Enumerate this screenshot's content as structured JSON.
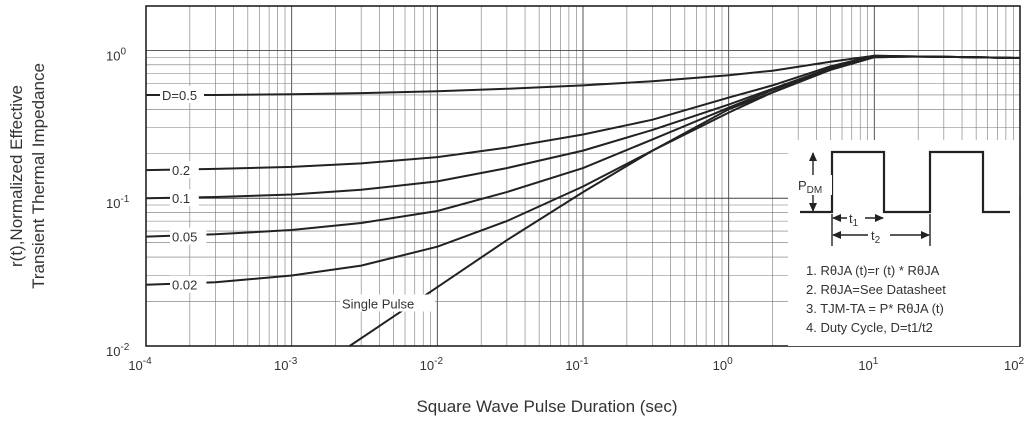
{
  "chart_data": {
    "type": "line",
    "xscale": "log",
    "yscale": "log",
    "xlim": [
      0.0001,
      100
    ],
    "ylim": [
      0.01,
      2
    ],
    "grid": true,
    "xlabel": "Square Wave Pulse Duration (sec)",
    "ylabel_lines": [
      "r(t),Normalized Effective",
      "Transient Thermal Impedance"
    ],
    "x_ticks": [
      {
        "value": 0.0001,
        "base": "10",
        "exp": "-4"
      },
      {
        "value": 0.001,
        "base": "10",
        "exp": "-3"
      },
      {
        "value": 0.01,
        "base": "10",
        "exp": "-2"
      },
      {
        "value": 0.1,
        "base": "10",
        "exp": "-1"
      },
      {
        "value": 1,
        "base": "10",
        "exp": "0"
      },
      {
        "value": 10,
        "base": "10",
        "exp": "1"
      },
      {
        "value": 100,
        "base": "10",
        "exp": "2"
      }
    ],
    "y_ticks": [
      {
        "value": 0.01,
        "base": "10",
        "exp": "-2"
      },
      {
        "value": 0.1,
        "base": "10",
        "exp": "-1"
      },
      {
        "value": 1,
        "base": "10",
        "exp": "0"
      }
    ],
    "series": [
      {
        "name": "D=0.5",
        "x": [
          0.0001,
          0.0003,
          0.001,
          0.003,
          0.01,
          0.03,
          0.1,
          0.3,
          1,
          2,
          5,
          10,
          20,
          50,
          100
        ],
        "y": [
          0.5,
          0.5,
          0.505,
          0.515,
          0.53,
          0.55,
          0.58,
          0.62,
          0.68,
          0.73,
          0.84,
          0.92,
          0.91,
          0.9,
          0.89
        ]
      },
      {
        "name": "0.2",
        "x": [
          0.0001,
          0.0003,
          0.001,
          0.003,
          0.01,
          0.03,
          0.1,
          0.3,
          1,
          2,
          5,
          10,
          20,
          50,
          100
        ],
        "y": [
          0.155,
          0.158,
          0.163,
          0.172,
          0.19,
          0.22,
          0.27,
          0.34,
          0.48,
          0.58,
          0.78,
          0.92,
          0.91,
          0.9,
          0.89
        ]
      },
      {
        "name": "0.1",
        "x": [
          0.0001,
          0.0003,
          0.001,
          0.003,
          0.01,
          0.03,
          0.1,
          0.3,
          1,
          2,
          5,
          10,
          20,
          50,
          100
        ],
        "y": [
          0.1,
          0.102,
          0.106,
          0.114,
          0.13,
          0.16,
          0.21,
          0.29,
          0.43,
          0.55,
          0.76,
          0.91,
          0.91,
          0.9,
          0.89
        ]
      },
      {
        "name": "0.05",
        "x": [
          0.0001,
          0.0003,
          0.001,
          0.003,
          0.01,
          0.03,
          0.1,
          0.3,
          1,
          2,
          5,
          10,
          20,
          50,
          100
        ],
        "y": [
          0.055,
          0.057,
          0.061,
          0.068,
          0.082,
          0.11,
          0.16,
          0.25,
          0.41,
          0.54,
          0.75,
          0.91,
          0.91,
          0.9,
          0.89
        ]
      },
      {
        "name": "0.02",
        "x": [
          0.0001,
          0.0003,
          0.001,
          0.003,
          0.01,
          0.03,
          0.1,
          0.3,
          1,
          2,
          5,
          10,
          20,
          50,
          100
        ],
        "y": [
          0.026,
          0.027,
          0.03,
          0.035,
          0.047,
          0.07,
          0.12,
          0.21,
          0.38,
          0.52,
          0.74,
          0.9,
          0.91,
          0.9,
          0.89
        ]
      },
      {
        "name": "Single Pulse",
        "x": [
          0.0025,
          0.01,
          0.03,
          0.1,
          0.3,
          1,
          2,
          5,
          10,
          20,
          50,
          100
        ],
        "y": [
          0.01,
          0.025,
          0.052,
          0.11,
          0.21,
          0.4,
          0.52,
          0.74,
          0.9,
          0.91,
          0.9,
          0.89
        ]
      }
    ],
    "annotations": [
      "D=0.5",
      "0.2",
      "0.1",
      "0.05",
      "0.02",
      "Single Pulse"
    ],
    "inset": {
      "pdm_label": "P",
      "pdm_sub": "DM",
      "t1_label": "t",
      "t1_sub": "1",
      "t2_label": "t",
      "t2_sub": "2"
    },
    "notes": [
      "1. RθJA (t)=r (t) * RθJA",
      "2. RθJA=See Datasheet",
      "3. TJM-TA = P* RθJA (t)",
      "4. Duty Cycle, D=t1/t2"
    ]
  }
}
